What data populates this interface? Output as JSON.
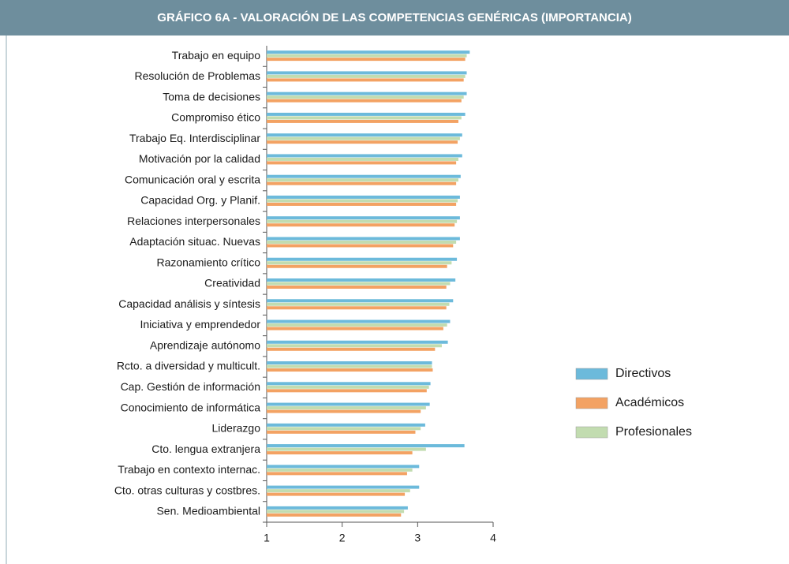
{
  "chart_data": {
    "type": "bar",
    "orientation": "horizontal",
    "title": "GRÁFICO 6A - VALORACIÓN DE LAS COMPETENCIAS GENÉRICAS (IMPORTANCIA)",
    "categories": [
      "Trabajo en equipo",
      "Resolución de Problemas",
      "Toma de decisiones",
      "Compromiso ético",
      "Trabajo Eq. Interdisciplinar",
      "Motivación por la calidad",
      "Comunicación oral y escrita",
      "Capacidad Org. y Planif.",
      "Relaciones interpersonales",
      "Adaptación situac. Nuevas",
      "Razonamiento crítico",
      "Creatividad",
      "Capacidad análisis y síntesis",
      "Iniciativa y emprendedor",
      "Aprendizaje autónomo",
      "Rcto. a diversidad y multicult.",
      "Cap. Gestión de información",
      "Conocimiento de informática",
      "Liderazgo",
      "Cto. lengua extranjera",
      "Trabajo en contexto internac.",
      "Cto. otras culturas y costbres.",
      "Sen. Medioambiental"
    ],
    "series": [
      {
        "name": "Directivos",
        "color": "#6cbadb",
        "values": [
          3.69,
          3.65,
          3.65,
          3.63,
          3.59,
          3.59,
          3.57,
          3.56,
          3.56,
          3.56,
          3.52,
          3.5,
          3.47,
          3.43,
          3.4,
          3.19,
          3.17,
          3.16,
          3.1,
          3.62,
          3.02,
          3.02,
          2.87
        ]
      },
      {
        "name": "Académicos",
        "color": "#f3a263",
        "values": [
          3.63,
          3.61,
          3.58,
          3.54,
          3.53,
          3.51,
          3.51,
          3.51,
          3.49,
          3.47,
          3.39,
          3.38,
          3.38,
          3.34,
          3.23,
          3.2,
          3.12,
          3.04,
          2.97,
          2.93,
          2.86,
          2.83,
          2.78
        ]
      },
      {
        "name": "Profesionales",
        "color": "#c2dcb0",
        "values": [
          3.65,
          3.63,
          3.61,
          3.58,
          3.56,
          3.54,
          3.54,
          3.53,
          3.52,
          3.51,
          3.45,
          3.43,
          3.42,
          3.39,
          3.32,
          3.19,
          3.15,
          3.11,
          3.04,
          3.11,
          2.93,
          2.9,
          2.82
        ]
      }
    ],
    "xlim": [
      1,
      4
    ],
    "xticks": [
      1,
      2,
      3,
      4
    ],
    "legend": "right"
  }
}
